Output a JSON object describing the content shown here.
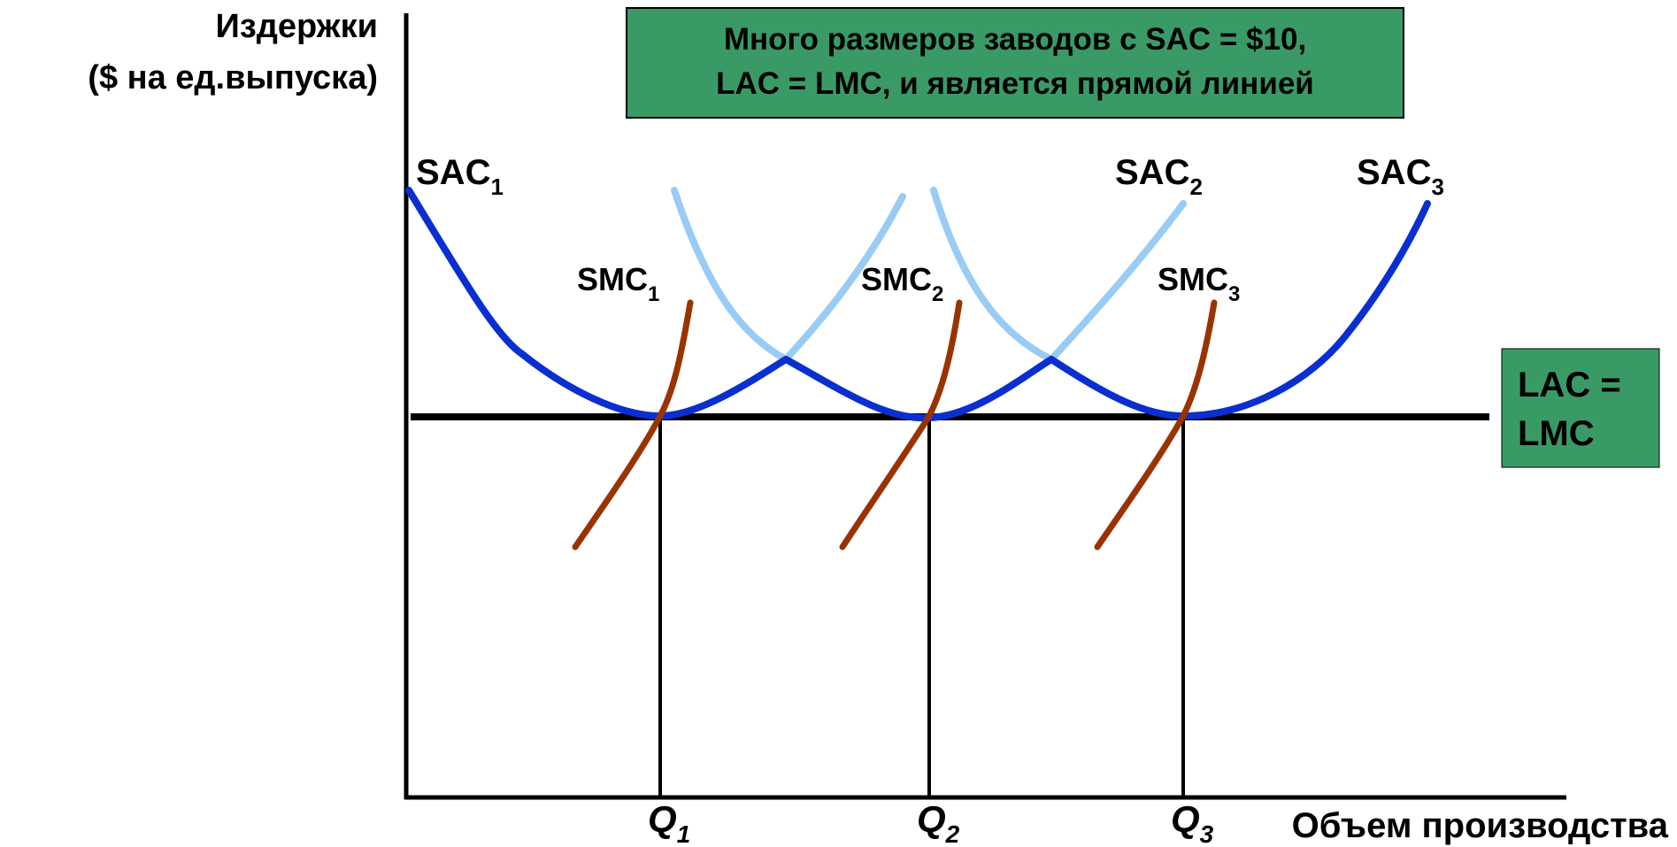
{
  "axes": {
    "y_label_line1": "Издержки",
    "y_label_line2": "($ на ед.выпуска)",
    "x_label": "Объем производства"
  },
  "note_box": {
    "line1": "Много размеров заводов с SAC = $10,",
    "line2": "LAC = LMC, и является прямой линией"
  },
  "lac_box": {
    "line1": "LAC =",
    "line2": "LMC"
  },
  "curve_labels": {
    "sac1": {
      "main": "SAC",
      "sub": "1"
    },
    "sac2": {
      "main": "SAC",
      "sub": "2"
    },
    "sac3": {
      "main": "SAC",
      "sub": "3"
    },
    "smc1": {
      "main": "SMC",
      "sub": "1"
    },
    "smc2": {
      "main": "SMC",
      "sub": "2"
    },
    "smc3": {
      "main": "SMC",
      "sub": "3"
    }
  },
  "quantities": [
    {
      "main": "Q",
      "sub": "1"
    },
    {
      "main": "Q",
      "sub": "2"
    },
    {
      "main": "Q",
      "sub": "3"
    }
  ],
  "colors": {
    "sac_dark": "#0A2FD0",
    "sac_light": "#99CCF5",
    "smc": "#993300",
    "lac_line": "#000000",
    "box_fill": "#3A9A66"
  }
}
